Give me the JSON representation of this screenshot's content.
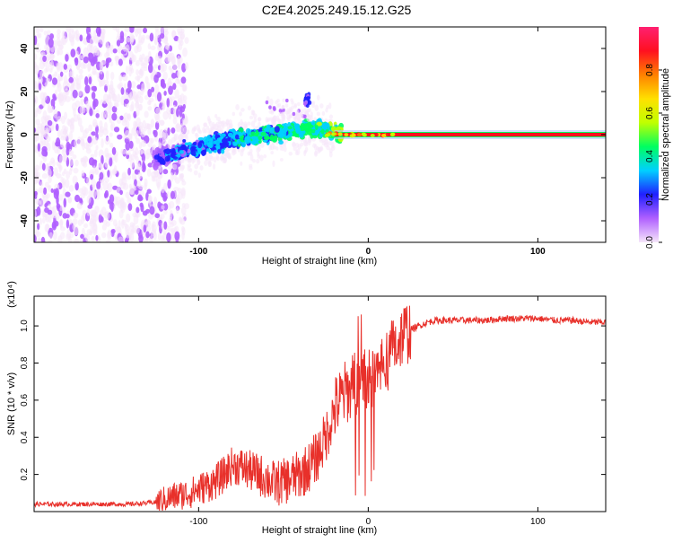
{
  "page": {
    "title": "C2E4.2025.249.15.12.G25"
  },
  "colors": {
    "snr_line": "#e8302a",
    "frame": "#000000",
    "background": "#ffffff"
  },
  "chart_data": [
    {
      "type": "heatmap",
      "title": "C2E4.2025.249.15.12.G25",
      "xlabel": "Height of straight line (km)",
      "ylabel": "Frequency (Hz)",
      "xlim": [
        -197,
        140
      ],
      "ylim": [
        -50,
        50
      ],
      "xticks": [
        -100,
        0,
        100
      ],
      "yticks": [
        -40,
        -20,
        0,
        20,
        40
      ],
      "grid": false,
      "colorbar": {
        "label": "Normalized spectral amplitude",
        "range": [
          0.0,
          1.0
        ],
        "ticks": [
          "0.0",
          "0.2",
          "0.4",
          "0.6",
          "0.8"
        ],
        "colors": [
          "#f6e6fa",
          "#b060ff",
          "#2020ff",
          "#00d0ff",
          "#00ff60",
          "#c0ff00",
          "#ffe000",
          "#ff8000",
          "#ff1020",
          "#ff2070"
        ]
      },
      "ridge": {
        "description_points_x": [
          -120,
          -100,
          -80,
          -60,
          -40,
          -30,
          -20,
          0,
          140
        ],
        "description_points_y": [
          -10,
          -6,
          -2,
          0,
          2,
          3,
          1,
          0,
          0
        ]
      }
    },
    {
      "type": "line",
      "xlabel": "Height of straight line (km)",
      "ylabel": "SNR (10 * v/v)",
      "yscale_label": "(x10⁴)",
      "xlim": [
        -197,
        140
      ],
      "ylim": [
        0.0,
        1.16
      ],
      "xticks": [
        -100,
        0,
        100
      ],
      "yticks": [
        0.2,
        0.4,
        0.6,
        0.8,
        1.0
      ],
      "grid": false,
      "series": [
        {
          "name": "SNR",
          "x": [
            -197,
            -180,
            -160,
            -140,
            -125,
            -115,
            -105,
            -95,
            -90,
            -85,
            -80,
            -75,
            -70,
            -65,
            -60,
            -55,
            -50,
            -45,
            -40,
            -35,
            -30,
            -25,
            -20,
            -15,
            -10,
            -5,
            0,
            5,
            10,
            15,
            20,
            25,
            30,
            35,
            40,
            50,
            60,
            70,
            80,
            90,
            100,
            110,
            120,
            130,
            140
          ],
          "y": [
            0.04,
            0.04,
            0.04,
            0.04,
            0.05,
            0.08,
            0.1,
            0.14,
            0.16,
            0.2,
            0.25,
            0.24,
            0.22,
            0.2,
            0.18,
            0.15,
            0.16,
            0.18,
            0.2,
            0.24,
            0.3,
            0.4,
            0.55,
            0.62,
            0.68,
            0.7,
            0.72,
            0.75,
            0.8,
            0.88,
            0.95,
            0.98,
            1.0,
            1.02,
            1.03,
            1.03,
            1.03,
            1.03,
            1.04,
            1.04,
            1.04,
            1.03,
            1.03,
            1.02,
            1.02
          ]
        }
      ]
    }
  ]
}
